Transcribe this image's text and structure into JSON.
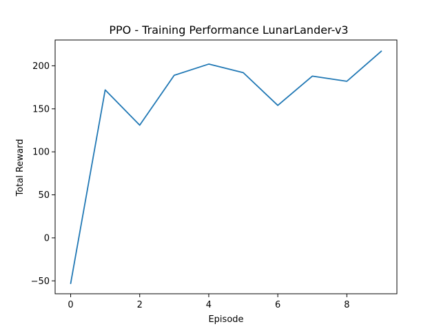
{
  "chart_data": {
    "type": "line",
    "title": "PPO - Training Performance LunarLander-v3",
    "xlabel": "Episode",
    "ylabel": "Total Reward",
    "xlim": [
      -0.45,
      9.45
    ],
    "ylim": [
      -65,
      230
    ],
    "xticks": [
      0,
      2,
      4,
      6,
      8
    ],
    "yticks": [
      -50,
      0,
      50,
      100,
      150,
      200
    ],
    "grid": false,
    "series": [
      {
        "color": "#1f77b4",
        "x": [
          0,
          1,
          2,
          3,
          4,
          5,
          6,
          7,
          8,
          9
        ],
        "y": [
          -53,
          172,
          131,
          189,
          202,
          192,
          154,
          188,
          182,
          217
        ]
      }
    ]
  }
}
